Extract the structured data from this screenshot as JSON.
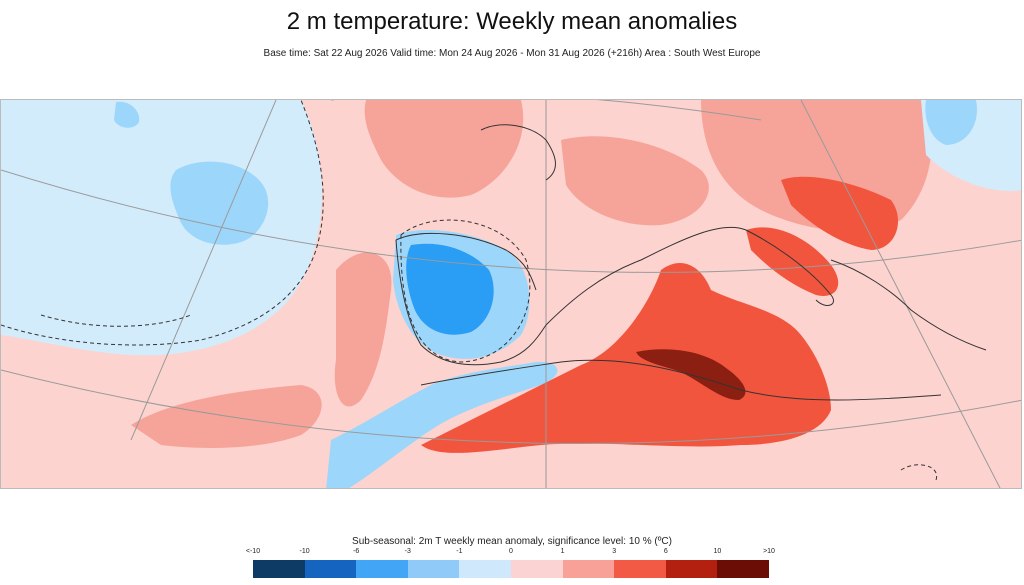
{
  "title": "2 m temperature: Weekly mean anomalies",
  "subtitle": "Base time: Sat 22 Aug 2026 Valid time: Mon 24 Aug 2026 - Mon 31 Aug 2026 (+216h) Area : South West Europe",
  "legend": {
    "caption": "Sub-seasonal: 2m T weekly mean anomaly, significance level: 10 % (ºC)",
    "ticks": [
      "<-10",
      "-10",
      "-6",
      "-3",
      "-1",
      "0",
      "1",
      "3",
      "6",
      "10",
      ">10"
    ],
    "colors": [
      "#0d3b66",
      "#1565c0",
      "#42a5f5",
      "#90caf9",
      "#cfe8fb",
      "#fbd3d3",
      "#f7a199",
      "#f25a45",
      "#b3200f",
      "#6b0d05"
    ]
  },
  "map": {
    "region": "South West Europe",
    "anomaly_colors": {
      "strong_cold": "#2a9df4",
      "cold": "#9dd6fb",
      "slight_cold": "#d3ecfb",
      "slight_warm": "#fdd3cf",
      "warm": "#f6a49a",
      "hot": "#f2553e",
      "very_hot": "#8b1f12"
    }
  }
}
